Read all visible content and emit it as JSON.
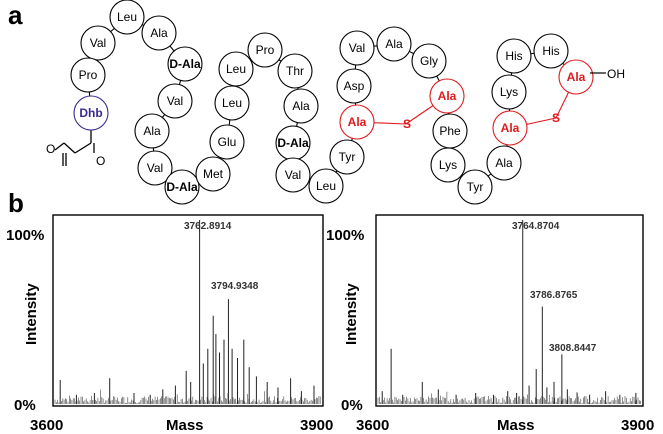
{
  "panel_labels": {
    "a": "a",
    "b": "b"
  },
  "peptide": {
    "residues": [
      {
        "id": "leu1",
        "label": "Leu"
      },
      {
        "id": "val1",
        "label": "Val"
      },
      {
        "id": "ala1",
        "label": "Ala"
      },
      {
        "id": "pro1",
        "label": "Pro"
      },
      {
        "id": "dala1",
        "label": "D-Ala"
      },
      {
        "id": "dhb",
        "label": "Dhb"
      },
      {
        "id": "val2",
        "label": "Val"
      },
      {
        "id": "ala2",
        "label": "Ala"
      },
      {
        "id": "val3",
        "label": "Val"
      },
      {
        "id": "dala2",
        "label": "D-Ala"
      },
      {
        "id": "met1",
        "label": "Met"
      },
      {
        "id": "glu1",
        "label": "Glu"
      },
      {
        "id": "leu2",
        "label": "Leu"
      },
      {
        "id": "leu3",
        "label": "Leu"
      },
      {
        "id": "pro2",
        "label": "Pro"
      },
      {
        "id": "thr1",
        "label": "Thr"
      },
      {
        "id": "ala3",
        "label": "Ala"
      },
      {
        "id": "dala3",
        "label": "D-Ala"
      },
      {
        "id": "val4",
        "label": "Val"
      },
      {
        "id": "leu4",
        "label": "Leu"
      },
      {
        "id": "tyr1",
        "label": "Tyr"
      },
      {
        "id": "ala_r1",
        "label": "Ala"
      },
      {
        "id": "asp1",
        "label": "Asp"
      },
      {
        "id": "val5",
        "label": "Val"
      },
      {
        "id": "ala4",
        "label": "Ala"
      },
      {
        "id": "gly1",
        "label": "Gly"
      },
      {
        "id": "ala_r2",
        "label": "Ala"
      },
      {
        "id": "phe1",
        "label": "Phe"
      },
      {
        "id": "lys1",
        "label": "Lys"
      },
      {
        "id": "tyr2",
        "label": "Tyr"
      },
      {
        "id": "ala5",
        "label": "Ala"
      },
      {
        "id": "ala_r3",
        "label": "Ala"
      },
      {
        "id": "lys2",
        "label": "Lys"
      },
      {
        "id": "his1",
        "label": "His"
      },
      {
        "id": "his2",
        "label": "His"
      },
      {
        "id": "ala_r4",
        "label": "Ala"
      }
    ],
    "bridge_labels": {
      "s1": "S",
      "s2": "S"
    },
    "terminal_oh": "OH",
    "colors": {
      "normal": "#000000",
      "bridge": "#e0191d",
      "dhb": "#3b2a8c"
    }
  },
  "spectra": [
    {
      "id": "left",
      "y_axis_label": "Intensity",
      "x_axis_label": "Mass",
      "x_min": "3600",
      "x_max": "3900",
      "y_top": "100%",
      "y_bottom": "0%",
      "peak_labels": [
        "3762.8914",
        "3794.9348"
      ],
      "chart_data": {
        "type": "bar",
        "title": "",
        "xlabel": "Mass",
        "ylabel": "Intensity",
        "xlim": [
          3600,
          3900
        ],
        "ylim": [
          0,
          100
        ],
        "labeled_peaks": [
          {
            "x": 3762.8914,
            "y": 100
          },
          {
            "x": 3794.9348,
            "y": 57
          }
        ],
        "peaks": [
          {
            "x": 3608,
            "y": 13
          },
          {
            "x": 3626,
            "y": 5
          },
          {
            "x": 3646,
            "y": 6
          },
          {
            "x": 3663,
            "y": 14
          },
          {
            "x": 3690,
            "y": 6
          },
          {
            "x": 3708,
            "y": 5
          },
          {
            "x": 3722,
            "y": 8
          },
          {
            "x": 3736,
            "y": 10
          },
          {
            "x": 3748,
            "y": 18
          },
          {
            "x": 3753,
            "y": 12
          },
          {
            "x": 3762.8914,
            "y": 100
          },
          {
            "x": 3767,
            "y": 22
          },
          {
            "x": 3772,
            "y": 30
          },
          {
            "x": 3778,
            "y": 48
          },
          {
            "x": 3781,
            "y": 38
          },
          {
            "x": 3785,
            "y": 28
          },
          {
            "x": 3790,
            "y": 35
          },
          {
            "x": 3794.9348,
            "y": 57
          },
          {
            "x": 3799,
            "y": 30
          },
          {
            "x": 3805,
            "y": 25
          },
          {
            "x": 3812,
            "y": 35
          },
          {
            "x": 3818,
            "y": 20
          },
          {
            "x": 3826,
            "y": 15
          },
          {
            "x": 3838,
            "y": 12
          },
          {
            "x": 3850,
            "y": 9
          },
          {
            "x": 3864,
            "y": 14
          },
          {
            "x": 3876,
            "y": 7
          },
          {
            "x": 3890,
            "y": 10
          }
        ]
      }
    },
    {
      "id": "right",
      "y_axis_label": "Intensity",
      "x_axis_label": "Mass",
      "x_min": "3600",
      "x_max": "3900",
      "y_top": "100%",
      "y_bottom": "0%",
      "peak_labels": [
        "3764.8704",
        "3786.8765",
        "3808.8447"
      ],
      "chart_data": {
        "type": "bar",
        "title": "",
        "xlabel": "Mass",
        "ylabel": "Intensity",
        "xlim": [
          3600,
          3900
        ],
        "ylim": [
          0,
          100
        ],
        "labeled_peaks": [
          {
            "x": 3764.8704,
            "y": 100
          },
          {
            "x": 3786.8765,
            "y": 53
          },
          {
            "x": 3808.8447,
            "y": 27
          }
        ],
        "peaks": [
          {
            "x": 3607,
            "y": 7
          },
          {
            "x": 3617,
            "y": 30
          },
          {
            "x": 3630,
            "y": 5
          },
          {
            "x": 3652,
            "y": 12
          },
          {
            "x": 3670,
            "y": 8
          },
          {
            "x": 3690,
            "y": 5
          },
          {
            "x": 3712,
            "y": 6
          },
          {
            "x": 3732,
            "y": 5
          },
          {
            "x": 3748,
            "y": 7
          },
          {
            "x": 3758,
            "y": 6
          },
          {
            "x": 3764.8704,
            "y": 100
          },
          {
            "x": 3772,
            "y": 10
          },
          {
            "x": 3780,
            "y": 19
          },
          {
            "x": 3786.8765,
            "y": 53
          },
          {
            "x": 3792,
            "y": 9
          },
          {
            "x": 3800,
            "y": 12
          },
          {
            "x": 3808.8447,
            "y": 27
          },
          {
            "x": 3815,
            "y": 8
          },
          {
            "x": 3826,
            "y": 6
          },
          {
            "x": 3840,
            "y": 5
          },
          {
            "x": 3858,
            "y": 7
          },
          {
            "x": 3874,
            "y": 5
          },
          {
            "x": 3892,
            "y": 6
          }
        ]
      }
    }
  ]
}
